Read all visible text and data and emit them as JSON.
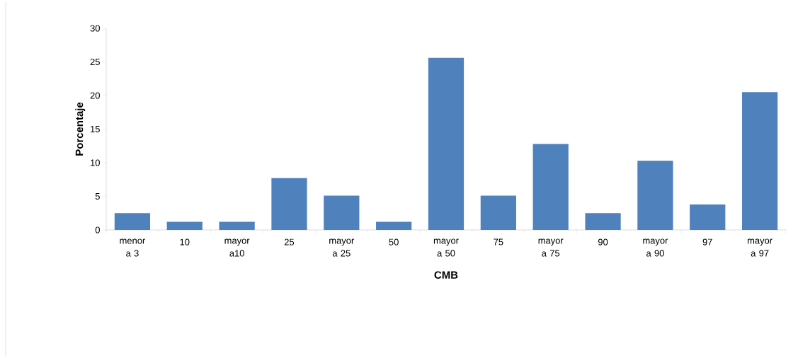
{
  "chart_data": {
    "type": "bar",
    "xlabel": "CMB",
    "ylabel": "Porcentaje",
    "categories": [
      "menor a 3",
      "10",
      "mayor a10",
      "25",
      "mayor a 25",
      "50",
      "mayor a 50",
      "75",
      "mayor a 75",
      "90",
      "mayor a 90",
      "97",
      "mayor a 97"
    ],
    "values": [
      2.5,
      1.2,
      1.2,
      7.7,
      5.1,
      1.2,
      25.6,
      5.1,
      12.8,
      2.5,
      10.3,
      3.8,
      20.5
    ],
    "color": "#4f81bd",
    "ylim": [
      0,
      30
    ],
    "yticks": [
      0,
      5,
      10,
      15,
      20,
      25,
      30
    ],
    "grid": false
  }
}
